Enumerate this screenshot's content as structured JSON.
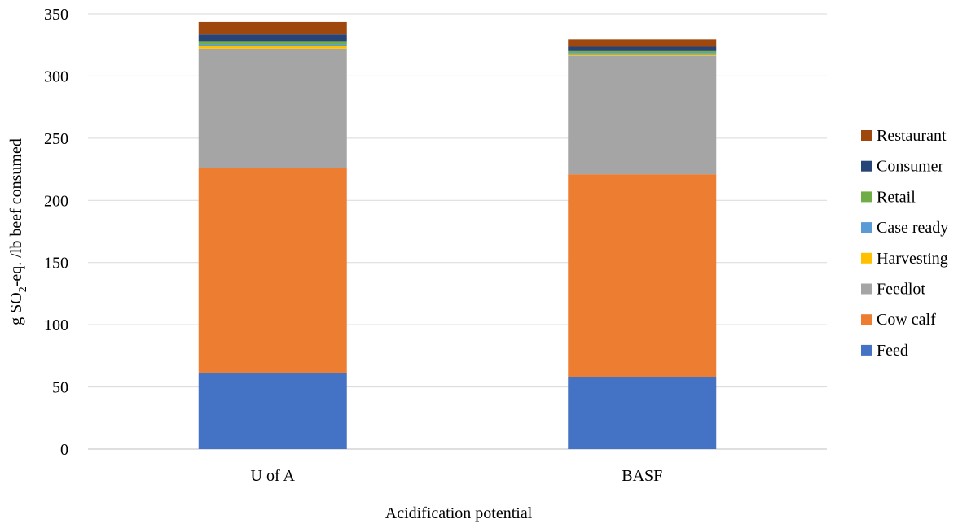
{
  "chart_data": {
    "type": "bar",
    "stacked": true,
    "categories": [
      "U of A",
      "BASF"
    ],
    "series": [
      {
        "name": "Feed",
        "values": [
          61.5,
          58.0
        ],
        "color": "#4472C4"
      },
      {
        "name": "Cow calf",
        "values": [
          164.5,
          163.0
        ],
        "color": "#ED7D31"
      },
      {
        "name": "Feedlot",
        "values": [
          96.0,
          95.0
        ],
        "color": "#A5A5A5"
      },
      {
        "name": "Harvesting",
        "values": [
          2.0,
          1.5
        ],
        "color": "#FFC000"
      },
      {
        "name": "Case ready",
        "values": [
          1.5,
          1.0
        ],
        "color": "#5B9BD5"
      },
      {
        "name": "Retail",
        "values": [
          2.0,
          1.5
        ],
        "color": "#70AD47"
      },
      {
        "name": "Consumer",
        "values": [
          6.0,
          3.5
        ],
        "color": "#264478"
      },
      {
        "name": "Restaurant",
        "values": [
          10.0,
          6.0
        ],
        "color": "#9E480E"
      }
    ],
    "xlabel": "Acidification potential",
    "ylabel_parts": {
      "before": "g SO",
      "sub": "2",
      "after": "-eq. /lb beef consumed"
    },
    "ylim": [
      0,
      350
    ],
    "yticks": [
      0,
      50,
      100,
      150,
      200,
      250,
      300,
      350
    ],
    "grid": true,
    "legend_position": "right"
  }
}
